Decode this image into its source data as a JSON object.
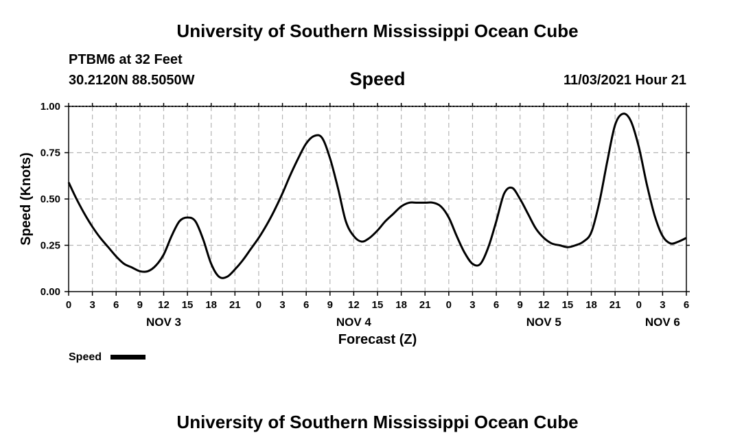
{
  "header": {
    "title": "University of Southern Mississippi Ocean Cube",
    "station": "PTBM6 at 32 Feet",
    "coordinates": "30.2120N  88.5050W",
    "variable": "Speed",
    "datetime": "11/03/2021 Hour 21"
  },
  "footer": {
    "title": "University of Southern Mississippi Ocean Cube"
  },
  "chart_data": {
    "type": "line",
    "title": "Speed",
    "xlabel": "Forecast (Z)",
    "ylabel": "Speed (Knots)",
    "ylim": [
      0,
      1
    ],
    "xlim": [
      0,
      78
    ],
    "x_units": "hours from Nov 3 00Z",
    "yticks": [
      "0.00",
      "0.25",
      "0.50",
      "0.75",
      "1.00"
    ],
    "xtick_labels": [
      "0",
      "3",
      "6",
      "9",
      "12",
      "15",
      "18",
      "21",
      "0",
      "3",
      "6",
      "9",
      "12",
      "15",
      "18",
      "21",
      "0",
      "3",
      "6",
      "9",
      "12",
      "15",
      "18",
      "21",
      "0",
      "3",
      "6"
    ],
    "day_labels": [
      {
        "label": "NOV 3",
        "hour": 12
      },
      {
        "label": "NOV 4",
        "hour": 36
      },
      {
        "label": "NOV 5",
        "hour": 60
      },
      {
        "label": "NOV 6",
        "hour": 75
      }
    ],
    "grid": true,
    "legend": {
      "label": "Speed",
      "placement": "bottom-left"
    },
    "series": [
      {
        "name": "Speed",
        "x": [
          0,
          1,
          2,
          3,
          4,
          5,
          6,
          7,
          8,
          9,
          10,
          11,
          12,
          13,
          14,
          15,
          16,
          17,
          18,
          19,
          20,
          21,
          22,
          23,
          24,
          25,
          26,
          27,
          28,
          29,
          30,
          31,
          32,
          33,
          34,
          35,
          36,
          37,
          38,
          39,
          40,
          41,
          42,
          43,
          44,
          45,
          46,
          47,
          48,
          49,
          50,
          51,
          52,
          53,
          54,
          55,
          56,
          57,
          58,
          59,
          60,
          61,
          62,
          63,
          64,
          65,
          66,
          67,
          68,
          69,
          70,
          71,
          72,
          73,
          74,
          75,
          76,
          77,
          78
        ],
        "values": [
          0.59,
          0.5,
          0.42,
          0.35,
          0.29,
          0.24,
          0.19,
          0.15,
          0.13,
          0.11,
          0.11,
          0.14,
          0.2,
          0.3,
          0.38,
          0.4,
          0.38,
          0.28,
          0.15,
          0.08,
          0.08,
          0.12,
          0.17,
          0.23,
          0.29,
          0.36,
          0.44,
          0.53,
          0.63,
          0.72,
          0.8,
          0.84,
          0.83,
          0.72,
          0.56,
          0.38,
          0.3,
          0.27,
          0.29,
          0.33,
          0.38,
          0.42,
          0.46,
          0.48,
          0.48,
          0.48,
          0.48,
          0.46,
          0.4,
          0.3,
          0.21,
          0.15,
          0.15,
          0.24,
          0.38,
          0.53,
          0.56,
          0.5,
          0.42,
          0.34,
          0.29,
          0.26,
          0.25,
          0.24,
          0.25,
          0.27,
          0.32,
          0.48,
          0.7,
          0.9,
          0.96,
          0.92,
          0.78,
          0.58,
          0.41,
          0.3,
          0.26,
          0.27,
          0.29
        ]
      }
    ]
  }
}
